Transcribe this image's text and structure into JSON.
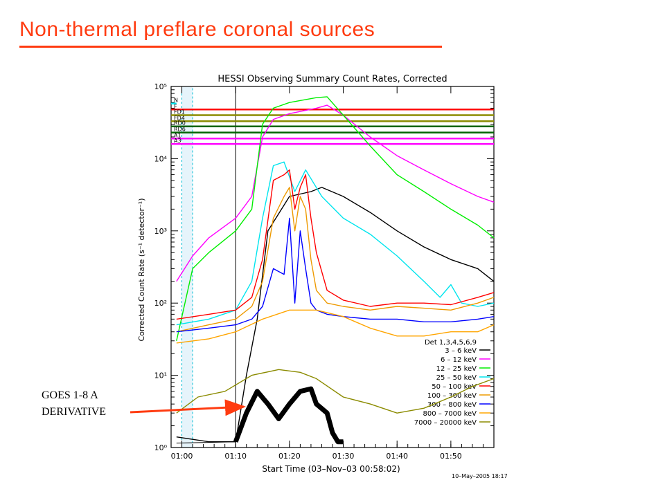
{
  "slide": {
    "title": "Non-thermal preflare coronal sources",
    "annotation_line1": "GOES 1-8 A",
    "annotation_line2": "DERIVATIVE"
  },
  "chart_data": {
    "type": "line",
    "title": "HESSI Observing Summary Count Rates, Corrected",
    "xlabel": "Start Time (03–Nov–03 00:58:02)",
    "ylabel": "Corrected Count Rate (s⁻¹ detector⁻¹)",
    "y_scale": "log",
    "ylim": [
      1,
      100000
    ],
    "xlim": [
      "00:58",
      "01:58"
    ],
    "x_ticks": [
      "01:00",
      "01:10",
      "01:20",
      "01:30",
      "01:40",
      "01:50"
    ],
    "y_tick_labels": [
      "10⁰",
      "10¹",
      "10²",
      "10³",
      "10⁴",
      "10⁵"
    ],
    "legend_title": "Det 1,3,4,5,6,9",
    "legend_position": "bottom-right",
    "footer_stamp": "10–May–2005 18:17",
    "series": [
      {
        "name": "3 – 6 keV",
        "color": "#000000",
        "x": [
          "00:59",
          "01:05",
          "01:08",
          "01:10",
          "01:12",
          "01:14",
          "01:16",
          "01:20",
          "01:24",
          "01:26",
          "01:30",
          "01:35",
          "01:40",
          "01:45",
          "01:50",
          "01:55",
          "01:58"
        ],
        "y": [
          1.4,
          1.2,
          1.2,
          1.2,
          10,
          60,
          1000,
          3000,
          3500,
          4000,
          3000,
          1800,
          1000,
          600,
          400,
          300,
          200
        ]
      },
      {
        "name": "6 – 12 keV",
        "color": "#ff00ff",
        "x": [
          "00:59",
          "01:02",
          "01:05",
          "01:10",
          "01:13",
          "01:15",
          "01:17",
          "01:20",
          "01:25",
          "01:27",
          "01:30",
          "01:35",
          "01:40",
          "01:45",
          "01:50",
          "01:55",
          "01:58"
        ],
        "y": [
          200,
          450,
          800,
          1500,
          3000,
          20000,
          35000,
          42000,
          50000,
          55000,
          40000,
          20000,
          11000,
          7000,
          4500,
          3000,
          2500
        ]
      },
      {
        "name": "12 – 25 keV",
        "color": "#00ee00",
        "x": [
          "00:59",
          "01:02",
          "01:05",
          "01:10",
          "01:13",
          "01:15",
          "01:17",
          "01:20",
          "01:25",
          "01:27",
          "01:30",
          "01:35",
          "01:40",
          "01:45",
          "01:50",
          "01:55",
          "01:58"
        ],
        "y": [
          30,
          300,
          500,
          1000,
          2000,
          30000,
          50000,
          60000,
          70000,
          72000,
          40000,
          15000,
          6000,
          3500,
          2000,
          1200,
          800
        ]
      },
      {
        "name": "25 – 50 keV",
        "color": "#00e5ee",
        "x": [
          "00:59",
          "01:05",
          "01:10",
          "01:13",
          "01:15",
          "01:17",
          "01:19",
          "01:21",
          "01:23",
          "01:26",
          "01:30",
          "01:35",
          "01:40",
          "01:45",
          "01:48",
          "01:50",
          "01:52",
          "01:55",
          "01:58"
        ],
        "y": [
          50,
          60,
          80,
          200,
          1500,
          8000,
          9000,
          3500,
          7000,
          3000,
          1500,
          900,
          450,
          200,
          120,
          180,
          100,
          90,
          100
        ]
      },
      {
        "name": "50 – 100 keV",
        "color": "#ff0000",
        "x": [
          "00:59",
          "01:05",
          "01:10",
          "01:13",
          "01:15",
          "01:17",
          "01:19",
          "01:20",
          "01:21",
          "01:22",
          "01:23",
          "01:24",
          "01:25",
          "01:27",
          "01:30",
          "01:35",
          "01:40",
          "01:45",
          "01:50",
          "01:55",
          "01:58"
        ],
        "y": [
          60,
          70,
          80,
          120,
          400,
          5000,
          6000,
          7000,
          2000,
          4000,
          6000,
          1500,
          500,
          150,
          110,
          90,
          100,
          100,
          95,
          120,
          140
        ]
      },
      {
        "name": "100 – 300 keV",
        "color": "#ee9a00",
        "x": [
          "00:59",
          "01:05",
          "01:10",
          "01:13",
          "01:15",
          "01:17",
          "01:19",
          "01:20",
          "01:21",
          "01:22",
          "01:23",
          "01:24",
          "01:25",
          "01:27",
          "01:30",
          "01:35",
          "01:40",
          "01:45",
          "01:50",
          "01:55",
          "01:58"
        ],
        "y": [
          40,
          50,
          60,
          90,
          200,
          1500,
          3000,
          4000,
          1000,
          3000,
          2000,
          400,
          150,
          100,
          90,
          80,
          90,
          85,
          80,
          100,
          120
        ]
      },
      {
        "name": "300 – 800 keV",
        "color": "#0000ff",
        "x": [
          "00:59",
          "01:05",
          "01:10",
          "01:13",
          "01:15",
          "01:17",
          "01:19",
          "01:20",
          "01:21",
          "01:22",
          "01:23",
          "01:24",
          "01:25",
          "01:27",
          "01:30",
          "01:35",
          "01:40",
          "01:45",
          "01:50",
          "01:55",
          "01:58"
        ],
        "y": [
          40,
          45,
          50,
          60,
          90,
          300,
          250,
          1500,
          100,
          1000,
          300,
          100,
          80,
          70,
          65,
          60,
          60,
          55,
          55,
          60,
          65
        ]
      },
      {
        "name": "800 – 7000 keV",
        "color": "#ffa500",
        "x": [
          "00:59",
          "01:05",
          "01:10",
          "01:15",
          "01:20",
          "01:25",
          "01:30",
          "01:35",
          "01:40",
          "01:45",
          "01:50",
          "01:55",
          "01:58"
        ],
        "y": [
          28,
          32,
          40,
          60,
          80,
          80,
          65,
          45,
          35,
          35,
          40,
          40,
          50
        ]
      },
      {
        "name": "7000 – 20000 keV",
        "color": "#8b8b00",
        "x": [
          "00:59",
          "01:03",
          "01:08",
          "01:13",
          "01:18",
          "01:22",
          "01:25",
          "01:30",
          "01:35",
          "01:40",
          "01:45",
          "01:50",
          "01:54",
          "01:58"
        ],
        "y": [
          3,
          5,
          6,
          10,
          12,
          11,
          9,
          5,
          4,
          3,
          3.5,
          5,
          7,
          9
        ]
      }
    ],
    "goes_derivative": {
      "name": "GOES 1-8 A DERIVATIVE",
      "color": "#000000",
      "x": [
        "01:10",
        "01:12",
        "01:14",
        "01:16",
        "01:18",
        "01:20",
        "01:22",
        "01:24",
        "01:25",
        "01:27",
        "01:28",
        "01:29",
        "01:30"
      ],
      "y": [
        1.2,
        3,
        6,
        4,
        2.5,
        4,
        6,
        6.5,
        4,
        3,
        1.6,
        1.2,
        1.2
      ]
    },
    "attenuator_bars": [
      {
        "label": "N",
        "color": "#00e5ee",
        "start": "00:58",
        "end": "00:59",
        "level": 58000
      },
      {
        "label": "F",
        "color": "#ff0000",
        "start": "00:58",
        "end": "01:58",
        "level": 48000
      },
      {
        "label": "FD1",
        "color": "#8b8b00",
        "start": "00:58",
        "end": "01:58",
        "level": 40000
      },
      {
        "label": "FD4",
        "color": "#8b8b00",
        "start": "00:58",
        "end": "01:58",
        "level": 33000
      },
      {
        "label": "RD0",
        "color": "#006400",
        "start": "00:58",
        "end": "01:58",
        "level": 28000
      },
      {
        "label": "RD6",
        "color": "#006400",
        "start": "00:58",
        "end": "01:58",
        "level": 23000
      },
      {
        "label": "A1",
        "color": "#ff00ff",
        "start": "00:58",
        "end": "01:58",
        "level": 19000
      },
      {
        "label": "A3",
        "color": "#ff00ff",
        "start": "00:58",
        "end": "01:58",
        "level": 16000
      }
    ]
  },
  "colors": {
    "title_red": "#ff3b10",
    "arrow_red": "#ff3b10",
    "shade_band": "#e6f4fb"
  }
}
